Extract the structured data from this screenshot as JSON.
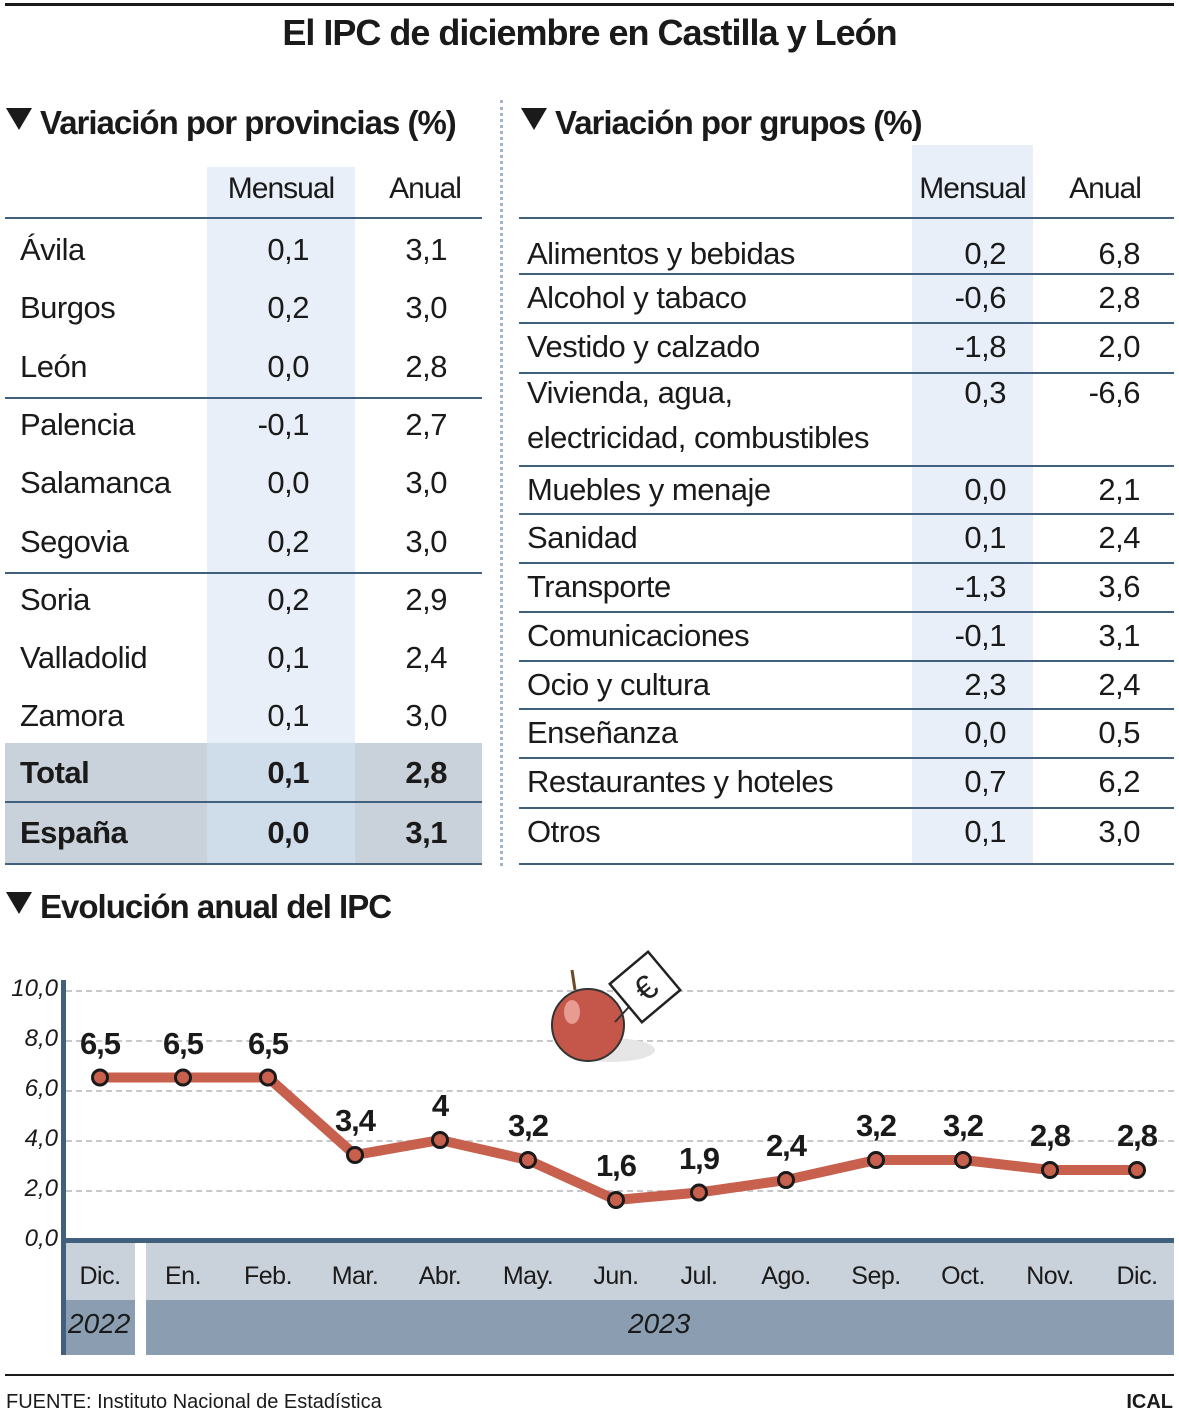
{
  "title": "El IPC de diciembre en Castilla y León",
  "provincias": {
    "heading": "Variación por provincias (%)",
    "columns": [
      "Mensual",
      "Anual"
    ],
    "rows": [
      {
        "name": "Ávila",
        "mensual": "0,1",
        "anual": "3,1"
      },
      {
        "name": "Burgos",
        "mensual": "0,2",
        "anual": "3,0"
      },
      {
        "name": "León",
        "mensual": "0,0",
        "anual": "2,8"
      },
      {
        "name": "Palencia",
        "mensual": "-0,1",
        "anual": "2,7"
      },
      {
        "name": "Salamanca",
        "mensual": "0,0",
        "anual": "3,0"
      },
      {
        "name": "Segovia",
        "mensual": "0,2",
        "anual": "3,0"
      },
      {
        "name": "Soria",
        "mensual": "0,2",
        "anual": "2,9"
      },
      {
        "name": "Valladolid",
        "mensual": "0,1",
        "anual": "2,4"
      },
      {
        "name": "Zamora",
        "mensual": "0,1",
        "anual": "3,0"
      }
    ],
    "totals": [
      {
        "name": "Total",
        "mensual": "0,1",
        "anual": "2,8"
      },
      {
        "name": "España",
        "mensual": "0,0",
        "anual": "3,1"
      }
    ]
  },
  "grupos": {
    "heading": "Variación por grupos (%)",
    "columns": [
      "Mensual",
      "Anual"
    ],
    "rows": [
      {
        "name": "Alimentos y bebidas",
        "mensual": "0,2",
        "anual": "6,8"
      },
      {
        "name": "Alcohol y tabaco",
        "mensual": "-0,6",
        "anual": "2,8"
      },
      {
        "name": "Vestido y calzado",
        "mensual": "-1,8",
        "anual": "2,0"
      },
      {
        "name": "Vivienda, agua,",
        "name2": "electricidad, combustibles",
        "mensual": "0,3",
        "anual": "-6,6"
      },
      {
        "name": "Muebles y menaje",
        "mensual": "0,0",
        "anual": "2,1"
      },
      {
        "name": "Sanidad",
        "mensual": "0,1",
        "anual": "2,4"
      },
      {
        "name": "Transporte",
        "mensual": "-1,3",
        "anual": "3,6"
      },
      {
        "name": "Comunicaciones",
        "mensual": "-0,1",
        "anual": "3,1"
      },
      {
        "name": "Ocio y cultura",
        "mensual": "2,3",
        "anual": "2,4"
      },
      {
        "name": "Enseñanza",
        "mensual": "0,0",
        "anual": "0,5"
      },
      {
        "name": "Restaurantes y hoteles",
        "mensual": "0,7",
        "anual": "6,2"
      },
      {
        "name": "Otros",
        "mensual": "0,1",
        "anual": "3,0"
      }
    ]
  },
  "chart_data": {
    "type": "line",
    "title": "Evolución anual del IPC",
    "categories": [
      "Dic.",
      "En.",
      "Feb.",
      "Mar.",
      "Abr.",
      "May.",
      "Jun.",
      "Jul.",
      "Ago.",
      "Sep.",
      "Oct.",
      "Nov.",
      "Dic."
    ],
    "years": [
      {
        "label": "2022",
        "months": 1
      },
      {
        "label": "2023",
        "months": 12
      }
    ],
    "values": [
      6.5,
      6.5,
      6.5,
      3.4,
      4,
      3.2,
      1.6,
      1.9,
      2.4,
      3.2,
      3.2,
      2.8,
      2.8
    ],
    "data_labels": [
      "6,5",
      "6,5",
      "6,5",
      "3,4",
      "4",
      "3,2",
      "1,6",
      "1,9",
      "2,4",
      "3,2",
      "3,2",
      "2,8",
      "2,8"
    ],
    "yticks": [
      "0,0",
      "2,0",
      "4,0",
      "6,0",
      "8,0",
      "10,0"
    ],
    "ylim": [
      0,
      10
    ],
    "grid": true,
    "line_color": "#c8604e",
    "icon": "apple-euro-sign-icon"
  },
  "footer": {
    "source": "FUENTE: Instituto Nacional de Estadística",
    "brand": "ICAL"
  },
  "colors": {
    "axis": "#41607e",
    "shade": "#e8eff8",
    "month_band": "#c9d1da",
    "year_band": "#8b9db1",
    "total_row": "#c9d1da"
  }
}
